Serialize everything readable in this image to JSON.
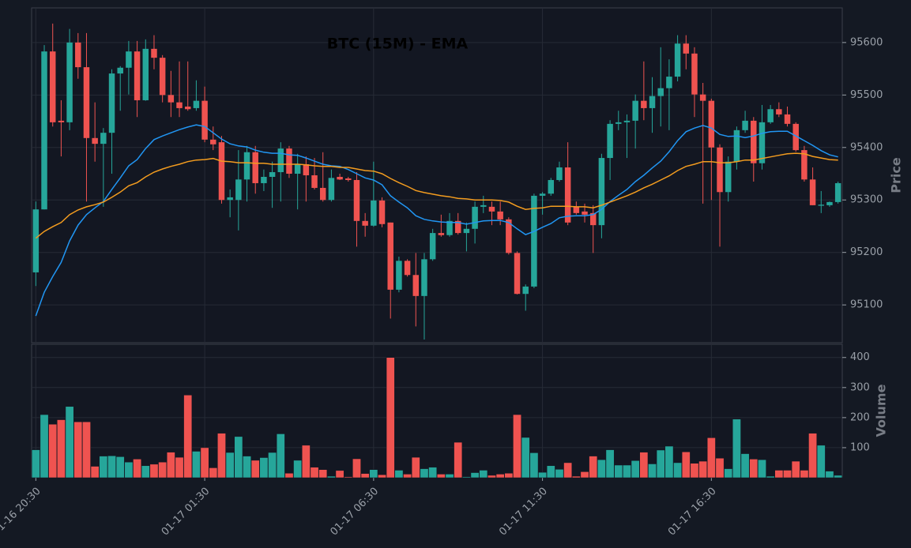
{
  "chart_data": {
    "type": "candlestick",
    "title": "BTC (15M) - EMA",
    "ylabel": "Price",
    "up_color": "#26a69a",
    "down_color": "#ef5350",
    "background": "#141923",
    "grid": true,
    "xlim": [
      -0.5,
      95.5
    ],
    "xticks": [
      {
        "value": 0,
        "label": "01-16 20:30"
      },
      {
        "value": 20,
        "label": "01-17 01:30"
      },
      {
        "value": 40,
        "label": "01-17 06:30"
      },
      {
        "value": 60,
        "label": "01-17 11:30"
      },
      {
        "value": 80,
        "label": "01-17 16:30"
      }
    ],
    "ylim": [
      95028,
      95666
    ],
    "yticks": [
      95100,
      95200,
      95300,
      95400,
      95500,
      95600
    ],
    "open": [
      95162,
      95282,
      95583,
      95451,
      95448,
      95600,
      95553,
      95418,
      95407,
      95428,
      95541,
      95552,
      95583,
      95490,
      95588,
      95571,
      95500,
      95486,
      95478,
      95475,
      95489,
      95415,
      95410,
      95300,
      95300,
      95339,
      95391,
      95332,
      95344,
      95353,
      95398,
      95350,
      95368,
      95347,
      95323,
      95300,
      95344,
      95341,
      95338,
      95260,
      95251,
      95299,
      95257,
      95129,
      95184,
      95157,
      95117,
      95187,
      95237,
      95233,
      95260,
      95237,
      95245,
      95287,
      95287,
      95278,
      95263,
      95199,
      95121,
      95135,
      95308,
      95312,
      95338,
      95362,
      95287,
      95278,
      95275,
      95252,
      95380,
      95445,
      95448,
      95451,
      95489,
      95475,
      95498,
      95513,
      95535,
      95598,
      95579,
      95501,
      95489,
      95400,
      95315,
      95373,
      95433,
      95451,
      95370,
      95448,
      95473,
      95463,
      95445,
      95395,
      95339,
      95289,
      95290,
      95296
    ],
    "high": [
      95297,
      95595,
      95636,
      95490,
      95626,
      95618,
      95618,
      95486,
      95437,
      95549,
      95555,
      95603,
      95603,
      95606,
      95614,
      95576,
      95546,
      95564,
      95564,
      95528,
      95516,
      95440,
      95422,
      95320,
      95395,
      95403,
      95403,
      95358,
      95373,
      95410,
      95403,
      95388,
      95383,
      95380,
      95391,
      95358,
      95350,
      95344,
      95353,
      95275,
      95373,
      95305,
      95257,
      95192,
      95187,
      95199,
      95199,
      95245,
      95272,
      95275,
      95275,
      95257,
      95297,
      95308,
      95297,
      95297,
      95267,
      95202,
      95139,
      95312,
      95315,
      95342,
      95373,
      95410,
      95297,
      95293,
      95290,
      95388,
      95452,
      95470,
      95463,
      95501,
      95564,
      95534,
      95591,
      95568,
      95614,
      95614,
      95591,
      95523,
      95493,
      95406,
      95383,
      95440,
      95470,
      95458,
      95481,
      95481,
      95486,
      95478,
      95448,
      95403,
      95362,
      95317,
      95297,
      95335
    ],
    "low": [
      95136,
      95282,
      95440,
      95383,
      95433,
      95531,
      95297,
      95373,
      95287,
      95350,
      95470,
      95501,
      95458,
      95489,
      95549,
      95486,
      95458,
      95458,
      95470,
      95470,
      95410,
      95395,
      95293,
      95267,
      95242,
      95297,
      95312,
      95317,
      95285,
      95297,
      95342,
      95282,
      95297,
      95320,
      95297,
      95297,
      95338,
      95335,
      95211,
      95230,
      95249,
      95248,
      95074,
      95124,
      95154,
      95059,
      95034,
      95184,
      95230,
      95230,
      95234,
      95202,
      95217,
      95275,
      95252,
      95252,
      95196,
      95120,
      95089,
      95132,
      95272,
      95308,
      95335,
      95252,
      95272,
      95257,
      95199,
      95227,
      95338,
      95433,
      95380,
      95398,
      95452,
      95428,
      95440,
      95433,
      95526,
      95549,
      95458,
      95293,
      95300,
      95211,
      95297,
      95358,
      95428,
      95335,
      95358,
      95445,
      95458,
      95440,
      95392,
      95335,
      95290,
      95275,
      95287,
      95293
    ],
    "close": [
      95282,
      95583,
      95448,
      95448,
      95600,
      95553,
      95418,
      95407,
      95428,
      95541,
      95552,
      95583,
      95490,
      95588,
      95571,
      95500,
      95486,
      95475,
      95473,
      95489,
      95415,
      95406,
      95300,
      95305,
      95339,
      95391,
      95332,
      95344,
      95353,
      95398,
      95350,
      95368,
      95347,
      95323,
      95300,
      95342,
      95339,
      95338,
      95260,
      95251,
      95299,
      95254,
      95129,
      95184,
      95157,
      95117,
      95187,
      95237,
      95233,
      95260,
      95237,
      95245,
      95287,
      95290,
      95278,
      95263,
      95199,
      95121,
      95135,
      95308,
      95312,
      95338,
      95362,
      95257,
      95275,
      95272,
      95252,
      95380,
      95445,
      95448,
      95451,
      95489,
      95475,
      95498,
      95513,
      95535,
      95598,
      95579,
      95501,
      95489,
      95400,
      95315,
      95373,
      95433,
      95451,
      95370,
      95448,
      95473,
      95463,
      95445,
      95395,
      95339,
      95290,
      95291,
      95296,
      95332
    ],
    "ema_lines": [
      {
        "color": "#2196f3",
        "values": [
          95079,
          95124,
          95154,
          95181,
          95222,
          95252,
          95272,
          95285,
          95297,
          95320,
          95342,
          95365,
          95377,
          95398,
          95415,
          95422,
          95428,
          95434,
          95439,
          95443,
          95440,
          95428,
          95416,
          95407,
          95403,
          95401,
          95395,
          95391,
          95389,
          95389,
          95386,
          95385,
          95380,
          95374,
          95368,
          95365,
          95364,
          95358,
          95350,
          95342,
          95338,
          95329,
          95308,
          95296,
          95285,
          95270,
          95263,
          95260,
          95258,
          95257,
          95257,
          95254,
          95257,
          95260,
          95261,
          95261,
          95257,
          95245,
          95234,
          95240,
          95248,
          95255,
          95266,
          95269,
          95270,
          95270,
          95272,
          95282,
          95297,
          95309,
          95320,
          95335,
          95347,
          95361,
          95374,
          95392,
          95413,
          95430,
          95437,
          95442,
          95437,
          95425,
          95421,
          95422,
          95419,
          95422,
          95427,
          95430,
          95431,
          95431,
          95422,
          95413,
          95404,
          95394,
          95386,
          95382
        ]
      },
      {
        "color": "#f39c1f",
        "values": [
          95227,
          95240,
          95249,
          95257,
          95272,
          95281,
          95287,
          95291,
          95296,
          95305,
          95315,
          95327,
          95333,
          95344,
          95353,
          95359,
          95364,
          95368,
          95373,
          95376,
          95377,
          95379,
          95374,
          95373,
          95371,
          95371,
          95370,
          95370,
          95368,
          95368,
          95368,
          95368,
          95367,
          95365,
          95364,
          95364,
          95362,
          95362,
          95359,
          95356,
          95355,
          95350,
          95341,
          95333,
          95326,
          95318,
          95314,
          95311,
          95308,
          95306,
          95303,
          95302,
          95300,
          95300,
          95300,
          95299,
          95296,
          95288,
          95282,
          95284,
          95285,
          95288,
          95288,
          95288,
          95287,
          95287,
          95285,
          95290,
          95296,
          95302,
          95308,
          95315,
          95323,
          95330,
          95338,
          95346,
          95356,
          95364,
          95368,
          95373,
          95373,
          95371,
          95371,
          95373,
          95376,
          95376,
          95379,
          95382,
          95385,
          95388,
          95389,
          95388,
          95383,
          95380,
          95377,
          95376
        ]
      }
    ],
    "volume": {
      "ylabel": "Volume",
      "ylim": [
        0,
        444
      ],
      "yticks": [
        100,
        200,
        300,
        400
      ],
      "values": [
        93,
        210,
        178,
        193,
        237,
        186,
        186,
        38,
        72,
        73,
        70,
        52,
        62,
        40,
        45,
        52,
        85,
        68,
        275,
        88,
        100,
        33,
        148,
        84,
        137,
        72,
        58,
        67,
        84,
        146,
        15,
        58,
        108,
        35,
        27,
        5,
        24,
        3,
        63,
        14,
        27,
        10,
        400,
        25,
        12,
        68,
        30,
        35,
        12,
        12,
        118,
        3,
        17,
        25,
        8,
        12,
        15,
        210,
        134,
        83,
        18,
        40,
        28,
        50,
        5,
        20,
        72,
        60,
        93,
        42,
        42,
        57,
        85,
        46,
        92,
        105,
        50,
        86,
        48,
        55,
        133,
        65,
        30,
        195,
        80,
        62,
        60,
        5,
        25,
        25,
        55,
        25,
        148,
        108,
        22,
        8
      ]
    }
  }
}
